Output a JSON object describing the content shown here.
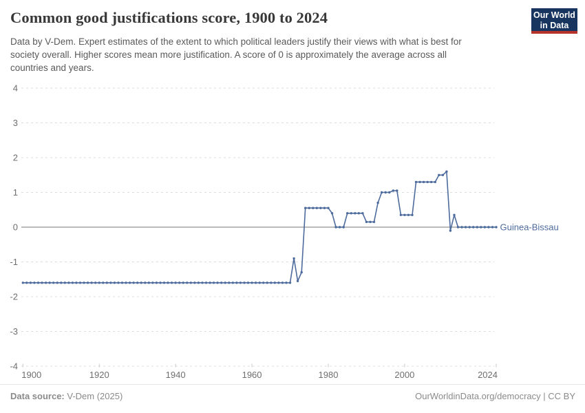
{
  "header": {
    "title": "Common good justifications score, 1900 to 2024",
    "subtitle_lines": [
      "Data by V-Dem. Expert estimates of the extent to which political leaders justify their views with what is best for",
      "society overall. Higher scores mean more justification. A score of 0 is approximately the average across all",
      "countries and years."
    ],
    "logo": {
      "line1": "Our World",
      "line2": "in Data",
      "bg_color": "#17355e",
      "accent_color": "#b5332b"
    }
  },
  "chart_data": {
    "type": "line",
    "title": "Common good justifications score, 1900 to 2024",
    "xlabel": "",
    "ylabel": "",
    "xlim": [
      1900,
      2024
    ],
    "ylim": [
      -4,
      4
    ],
    "grid": true,
    "legend_position": "end-of-line-label",
    "xticks": [
      1900,
      1920,
      1940,
      1960,
      1980,
      2000,
      2024
    ],
    "yticks": [
      -4,
      -3,
      -2,
      -1,
      0,
      1,
      2,
      3,
      4
    ],
    "line_color": "#4c6a9c",
    "grid_color": "#dcdcdc",
    "zero_line_color": "#a3a3a3",
    "tick_color": "#c9c9c9",
    "axis_label_color": "#6e6e6e",
    "series": [
      {
        "name": "Guinea-Bissau",
        "start_year": 1900,
        "end_year": 2024,
        "values": [
          -1.6,
          -1.6,
          -1.6,
          -1.6,
          -1.6,
          -1.6,
          -1.6,
          -1.6,
          -1.6,
          -1.6,
          -1.6,
          -1.6,
          -1.6,
          -1.6,
          -1.6,
          -1.6,
          -1.6,
          -1.6,
          -1.6,
          -1.6,
          -1.6,
          -1.6,
          -1.6,
          -1.6,
          -1.6,
          -1.6,
          -1.6,
          -1.6,
          -1.6,
          -1.6,
          -1.6,
          -1.6,
          -1.6,
          -1.6,
          -1.6,
          -1.6,
          -1.6,
          -1.6,
          -1.6,
          -1.6,
          -1.6,
          -1.6,
          -1.6,
          -1.6,
          -1.6,
          -1.6,
          -1.6,
          -1.6,
          -1.6,
          -1.6,
          -1.6,
          -1.6,
          -1.6,
          -1.6,
          -1.6,
          -1.6,
          -1.6,
          -1.6,
          -1.6,
          -1.6,
          -1.6,
          -1.6,
          -1.6,
          -1.6,
          -1.6,
          -1.6,
          -1.6,
          -1.6,
          -1.6,
          -1.6,
          -1.6,
          -0.9,
          -1.55,
          -1.3,
          0.55,
          0.55,
          0.55,
          0.55,
          0.55,
          0.55,
          0.55,
          0.4,
          0,
          0,
          0,
          0.4,
          0.4,
          0.4,
          0.4,
          0.4,
          0.15,
          0.15,
          0.15,
          0.7,
          1,
          1,
          1,
          1.05,
          1.05,
          0.35,
          0.35,
          0.35,
          0.35,
          1.3,
          1.3,
          1.3,
          1.3,
          1.3,
          1.3,
          1.5,
          1.5,
          1.6,
          -0.1,
          0.35,
          0,
          0,
          0,
          0,
          0,
          0,
          0,
          0,
          0,
          0,
          0
        ]
      }
    ]
  },
  "footer": {
    "source_label": "Data source:",
    "source_value": "V-Dem (2025)",
    "right_text": "OurWorldinData.org/democracy | CC BY"
  }
}
